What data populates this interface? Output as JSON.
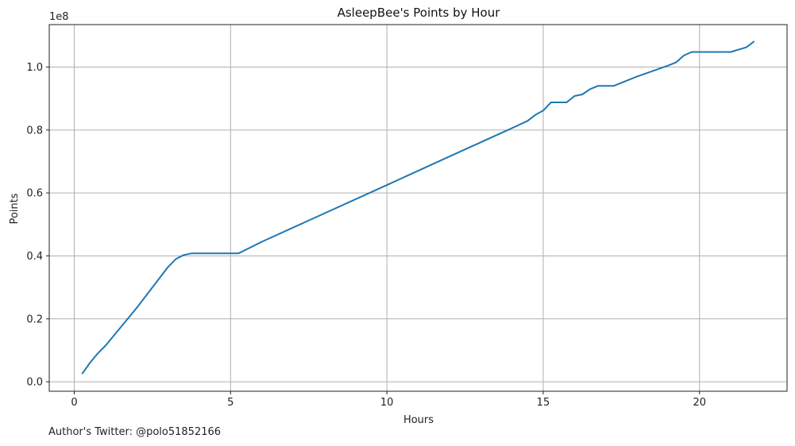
{
  "chart_data": {
    "type": "line",
    "title": "AsleepBee's Points by Hour",
    "xlabel": "Hours",
    "ylabel": "Points",
    "offset_label": "1e8",
    "xlim": [
      -0.8,
      22.8
    ],
    "ylim": [
      -0.03,
      1.135
    ],
    "x_ticks": [
      0,
      5,
      10,
      15,
      20
    ],
    "y_ticks": [
      0.0,
      0.2,
      0.4,
      0.6,
      0.8,
      1.0
    ],
    "y_tick_labels": [
      "0.0",
      "0.2",
      "0.4",
      "0.6",
      "0.8",
      "1.0"
    ],
    "grid": true,
    "series": [
      {
        "color": "#1f77b4",
        "x": [
          0.25,
          0.5,
          0.75,
          1.0,
          1.5,
          2.0,
          2.5,
          3.0,
          3.25,
          3.5,
          3.75,
          4.0,
          4.5,
          5.0,
          5.25,
          6.0,
          8.0,
          10.0,
          12.0,
          14.0,
          14.5,
          14.75,
          15.0,
          15.25,
          15.5,
          15.75,
          16.0,
          16.25,
          16.5,
          16.75,
          17.0,
          17.25,
          18.0,
          19.0,
          19.25,
          19.5,
          19.75,
          20.0,
          20.5,
          21.0,
          21.5,
          21.75
        ],
        "y": [
          0.025,
          0.06,
          0.09,
          0.115,
          0.175,
          0.235,
          0.3,
          0.365,
          0.39,
          0.403,
          0.408,
          0.408,
          0.408,
          0.408,
          0.408,
          0.445,
          0.535,
          0.625,
          0.716,
          0.806,
          0.829,
          0.848,
          0.862,
          0.888,
          0.888,
          0.888,
          0.908,
          0.913,
          0.93,
          0.94,
          0.94,
          0.94,
          0.97,
          1.005,
          1.015,
          1.037,
          1.048,
          1.048,
          1.048,
          1.048,
          1.063,
          1.082
        ]
      }
    ]
  },
  "footer": {
    "text": "Author's Twitter: @polo51852166"
  }
}
